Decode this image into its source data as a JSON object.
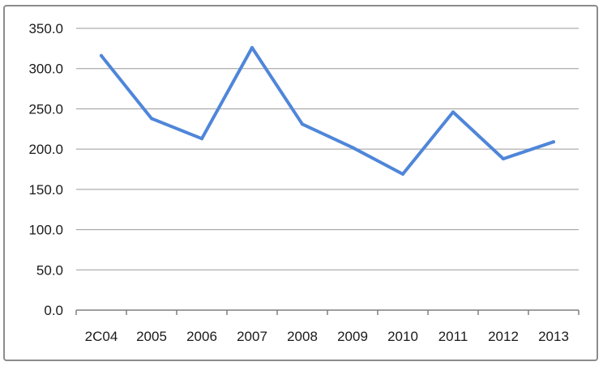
{
  "chart_data": {
    "type": "line",
    "categories": [
      "2C04",
      "2005",
      "2006",
      "2007",
      "2008",
      "2009",
      "2010",
      "2011",
      "2012",
      "2013"
    ],
    "series": [
      {
        "values": [
          316,
          238,
          213,
          326,
          231,
          202,
          169,
          246,
          188,
          209
        ]
      }
    ],
    "y_ticks": [
      "0.0",
      "50.0",
      "100.0",
      "150.0",
      "200.0",
      "250.0",
      "300.0",
      "350.0"
    ],
    "ylim": [
      0,
      350
    ],
    "grid": true,
    "legend": "none",
    "colors": {
      "line": "#4f86d9",
      "grid": "#9a9a9a",
      "axis": "#7f7f7f"
    }
  }
}
